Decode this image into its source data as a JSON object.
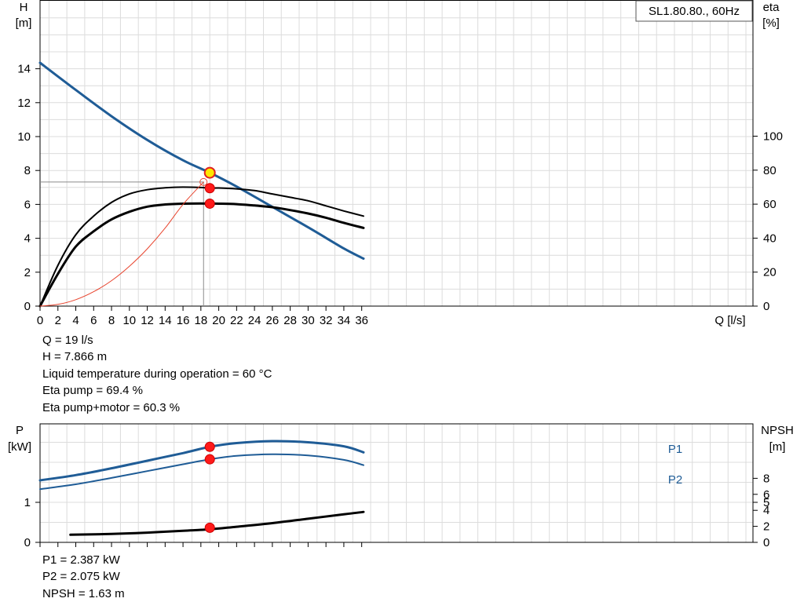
{
  "chart_data": [
    {
      "type": "line",
      "legend_box": "SL1.80.80., 60Hz",
      "left_axis_label": [
        "H",
        "[m]"
      ],
      "right_axis_label": [
        "eta",
        "[%]"
      ],
      "x_axis_label": "Q [l/s]",
      "x_ticks": [
        "0",
        "2",
        "4",
        "6",
        "8",
        "10",
        "12",
        "14",
        "16",
        "18",
        "20",
        "22",
        "24",
        "26",
        "28",
        "30",
        "32",
        "34",
        "36"
      ],
      "y_left_ticks": [
        "0",
        "2",
        "4",
        "6",
        "8",
        "10",
        "12",
        "14"
      ],
      "y_right_ticks": [
        "0",
        "20",
        "40",
        "60",
        "80",
        "100"
      ],
      "xlim": [
        0,
        36
      ],
      "ylim_left": [
        0,
        16
      ],
      "ylim_right": [
        0,
        100
      ],
      "grid": true,
      "series": [
        {
          "axis": "left",
          "color": "#1f5c96",
          "width": 3,
          "x": [
            0,
            4,
            8,
            12,
            16,
            19,
            22,
            26,
            30,
            34,
            36.2
          ],
          "y": [
            14.35,
            12.75,
            11.2,
            9.8,
            8.6,
            7.87,
            7.05,
            5.85,
            4.65,
            3.4,
            2.8
          ]
        },
        {
          "axis": "right",
          "color": "#000000",
          "width": 2,
          "x": [
            0,
            2,
            4,
            6,
            8,
            10,
            12,
            14,
            16,
            18,
            19,
            20,
            22,
            24,
            26,
            28,
            30,
            32,
            34,
            36.2
          ],
          "y": [
            0,
            24,
            42,
            53,
            61,
            66,
            68.5,
            69.6,
            70,
            69.8,
            69.4,
            69.5,
            69,
            68,
            66,
            64,
            62,
            59,
            56,
            53
          ]
        },
        {
          "axis": "right",
          "color": "#000000",
          "width": 3,
          "x": [
            0,
            2,
            4,
            6,
            8,
            10,
            12,
            14,
            16,
            18,
            19,
            20,
            22,
            24,
            26,
            28,
            30,
            32,
            34,
            36.2
          ],
          "y": [
            0,
            19,
            35,
            44,
            51,
            55.5,
            58.5,
            59.8,
            60.3,
            60.4,
            60.3,
            60.3,
            60,
            59.2,
            58.2,
            56.5,
            54.5,
            52,
            49,
            46
          ]
        },
        {
          "axis": "left",
          "color": "#e8442e",
          "width": 1,
          "x": [
            0,
            2,
            4,
            6,
            8,
            10,
            12,
            14,
            16,
            18.3
          ],
          "y": [
            0,
            0.1,
            0.38,
            0.85,
            1.5,
            2.35,
            3.38,
            4.6,
            6.0,
            7.32
          ]
        }
      ],
      "operating_point": {
        "q": 19,
        "h": 7.866,
        "eta_pump": 69.4,
        "eta_total": 60.3
      },
      "crosshair": {
        "q": 18.3,
        "h": 7.32
      }
    },
    {
      "type": "line",
      "left_axis_label": [
        "P",
        "[kW]"
      ],
      "right_axis_label": [
        "NPSH",
        "[m]"
      ],
      "y_left_ticks": [
        "0",
        "1"
      ],
      "y_right_ticks": [
        "0",
        "2",
        "4",
        "5",
        "6",
        "8"
      ],
      "series": [
        {
          "name": "P1",
          "color": "#1f5c96",
          "width": 3,
          "x": [
            0,
            4,
            8,
            12,
            16,
            19,
            22,
            26,
            30,
            34,
            36.2
          ],
          "y": [
            1.55,
            1.68,
            1.85,
            2.04,
            2.23,
            2.387,
            2.48,
            2.53,
            2.5,
            2.4,
            2.25
          ]
        },
        {
          "name": "P2",
          "color": "#1f5c96",
          "width": 2,
          "x": [
            0,
            4,
            8,
            12,
            16,
            19,
            22,
            26,
            30,
            34,
            36.2
          ],
          "y": [
            1.33,
            1.45,
            1.61,
            1.78,
            1.95,
            2.075,
            2.16,
            2.2,
            2.17,
            2.06,
            1.93
          ]
        },
        {
          "name": "",
          "axis": "right",
          "color": "#000000",
          "width": 3,
          "x": [
            3.4,
            8,
            12,
            16,
            19,
            22,
            26,
            30,
            34,
            36.2
          ],
          "y": [
            0.95,
            1.05,
            1.22,
            1.45,
            1.63,
            1.95,
            2.4,
            2.95,
            3.5,
            3.8
          ]
        }
      ],
      "operating_point": {
        "q": 19,
        "p1": 2.387,
        "p2": 2.075,
        "npsh": 1.63
      }
    }
  ],
  "info_top": [
    "Q = 19 l/s",
    "H = 7.866 m",
    "Liquid temperature during operation = 60 °C",
    "Eta pump = 69.4 %",
    "Eta pump+motor = 60.3 %"
  ],
  "info_bottom": [
    "P1 = 2.387 kW",
    "P2 = 2.075 kW",
    "NPSH = 1.63 m"
  ]
}
